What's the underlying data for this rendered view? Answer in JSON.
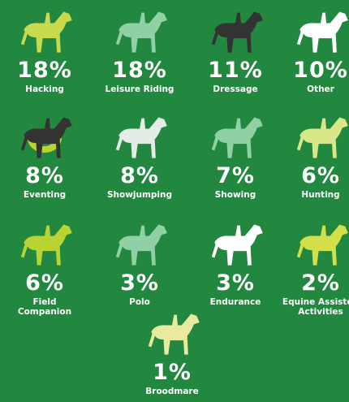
{
  "items": [
    {
      "value": "18%",
      "label": "Hacking"
    },
    {
      "value": "18%",
      "label": "Leisure Riding"
    },
    {
      "value": "11%",
      "label": "Dressage"
    },
    {
      "value": "10%",
      "label": "Other"
    },
    {
      "value": "8%",
      "label": "Eventing"
    },
    {
      "value": "8%",
      "label": "Showjumping"
    },
    {
      "value": "7%",
      "label": "Showing"
    },
    {
      "value": "6%",
      "label": "Hunting"
    },
    {
      "value": "6%",
      "label": "Field Companion"
    },
    {
      "value": "3%",
      "label": "Polo"
    },
    {
      "value": "3%",
      "label": "Endurance"
    },
    {
      "value": "2%",
      "label": "Equine Assisted Activities"
    },
    {
      "value": "1%",
      "label": "Broodmare"
    }
  ]
}
